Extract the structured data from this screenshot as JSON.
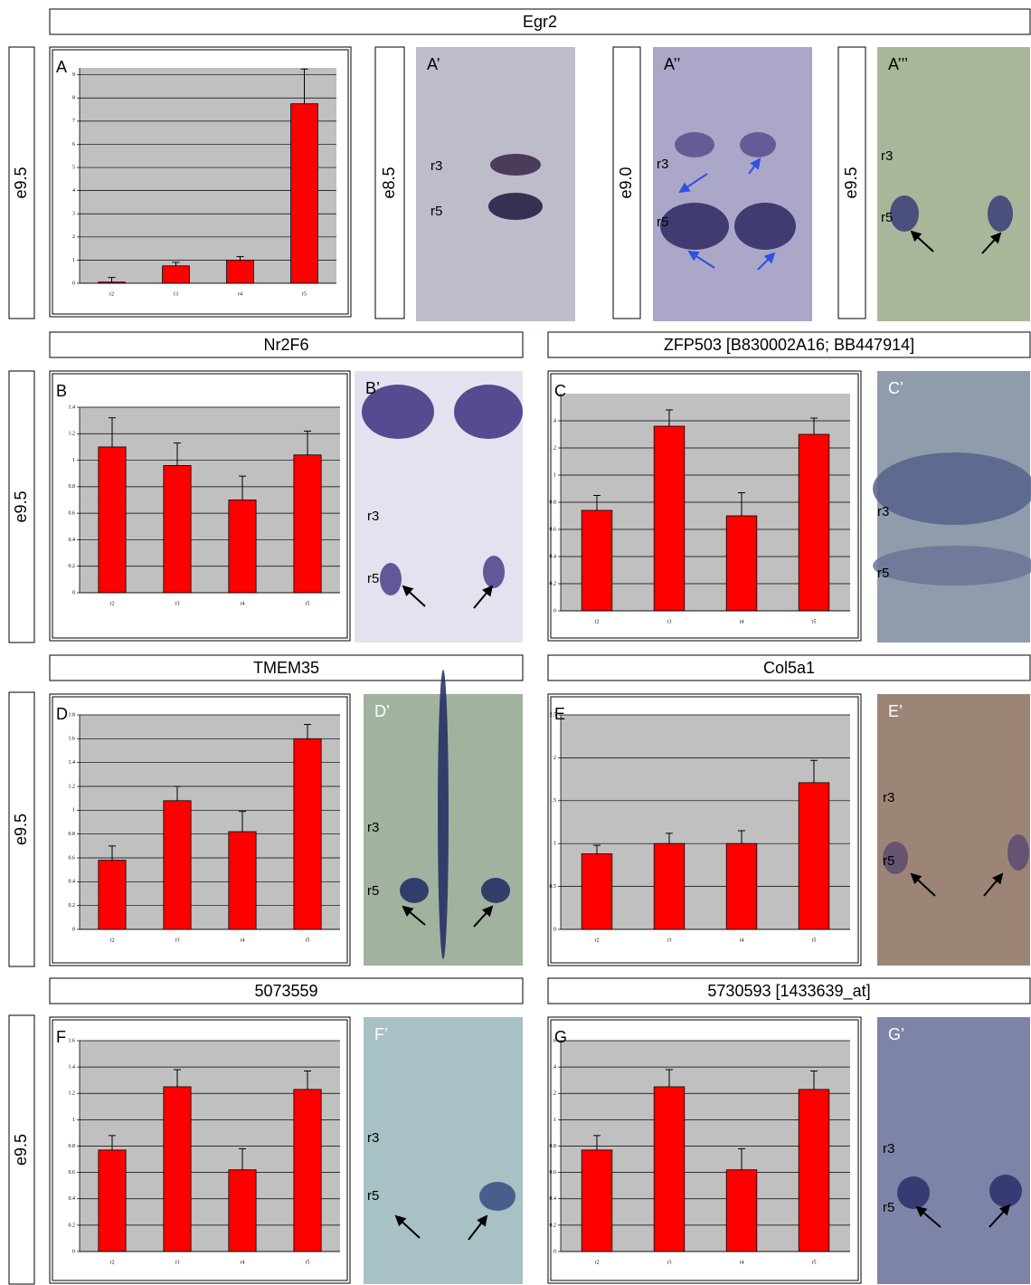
{
  "headers": [
    "Egr2",
    "Nr2F6",
    "ZFP503 [B830002A16; BB447914]",
    "TMEM35",
    "Col5a1",
    "5073559",
    "5730593 [1433639_at]"
  ],
  "stages": [
    "e9.5",
    "e8.5",
    "e9.0",
    "e9.5",
    "e9.5",
    "e9.5",
    "e9.5"
  ],
  "images": [
    {
      "label": "A’",
      "markers": [
        "r3",
        "r5"
      ]
    },
    {
      "label": "A’’",
      "markers": [
        "r3",
        "r5"
      ]
    },
    {
      "label": "A’’’",
      "markers": [
        "r3",
        "r5"
      ]
    },
    {
      "label": "B’",
      "markers": [
        "r3",
        "r5"
      ]
    },
    {
      "label": "C’",
      "markers": [
        "r3",
        "r5"
      ]
    },
    {
      "label": "D’",
      "markers": [
        "r3",
        "r5"
      ]
    },
    {
      "label": "E’",
      "markers": [
        "r3",
        "r5"
      ]
    },
    {
      "label": "F’",
      "markers": [
        "r3",
        "r5"
      ]
    },
    {
      "label": "G’",
      "markers": [
        "r3",
        "r5"
      ]
    }
  ],
  "chart_data": [
    {
      "type": "bar",
      "panel": "A",
      "categories": [
        "r2",
        "r3",
        "r4",
        "r5"
      ],
      "values": [
        0.05,
        0.75,
        1.0,
        7.75
      ],
      "errors": [
        0.2,
        0.15,
        0.15,
        1.5
      ],
      "color": "#ff0000",
      "ylim": [
        0,
        9.3
      ],
      "yticks": [
        0,
        1,
        2,
        3,
        4,
        5,
        6,
        7,
        8,
        9
      ],
      "grid": true
    },
    {
      "type": "bar",
      "panel": "B",
      "categories": [
        "r2",
        "r3",
        "r4",
        "r5"
      ],
      "values": [
        1.1,
        0.96,
        0.7,
        1.04
      ],
      "errors": [
        0.22,
        0.17,
        0.18,
        0.18
      ],
      "color": "#ff0000",
      "ylim": [
        0,
        1.4
      ],
      "yticks": [
        0,
        0.2,
        0.4,
        0.6,
        0.8,
        1,
        1.2,
        1.4
      ],
      "grid": true
    },
    {
      "type": "bar",
      "panel": "C",
      "categories": [
        "r2",
        "r3",
        "r4",
        "r5"
      ],
      "values": [
        0.74,
        1.36,
        0.7,
        1.3
      ],
      "errors": [
        0.11,
        0.12,
        0.17,
        0.12
      ],
      "color": "#ff0000",
      "ylim": [
        0,
        1.6
      ],
      "yticks": [
        0,
        0.2,
        0.4,
        0.6,
        0.8,
        1,
        1.2,
        1.4
      ],
      "grid": true
    },
    {
      "type": "bar",
      "panel": "D",
      "categories": [
        "r2",
        "r3",
        "r4",
        "r5"
      ],
      "values": [
        0.58,
        1.08,
        0.82,
        1.6
      ],
      "errors": [
        0.12,
        0.12,
        0.17,
        0.12
      ],
      "color": "#ff0000",
      "ylim": [
        0,
        1.8
      ],
      "yticks": [
        0,
        0.2,
        0.4,
        0.6,
        0.8,
        1,
        1.2,
        1.4,
        1.6,
        1.8
      ],
      "grid": true
    },
    {
      "type": "bar",
      "panel": "E",
      "categories": [
        "r2",
        "r3",
        "r4",
        "r5"
      ],
      "values": [
        0.88,
        1.0,
        1.0,
        1.71
      ],
      "errors": [
        0.1,
        0.12,
        0.15,
        0.26
      ],
      "color": "#ff0000",
      "ylim": [
        0,
        2.5
      ],
      "yticks": [
        0,
        0.5,
        1,
        1.5,
        2,
        2.5
      ],
      "grid": true
    },
    {
      "type": "bar",
      "panel": "F",
      "categories": [
        "r2",
        "r3",
        "r4",
        "r5"
      ],
      "values": [
        0.77,
        1.25,
        0.62,
        1.23
      ],
      "errors": [
        0.11,
        0.13,
        0.16,
        0.14
      ],
      "color": "#ff0000",
      "ylim": [
        0,
        1.6
      ],
      "yticks": [
        0,
        0.2,
        0.4,
        0.6,
        0.8,
        1,
        1.2,
        1.4,
        1.6
      ],
      "grid": true
    },
    {
      "type": "bar",
      "panel": "G",
      "categories": [
        "r2",
        "r3",
        "r4",
        "r5"
      ],
      "values": [
        0.77,
        1.25,
        0.62,
        1.23
      ],
      "errors": [
        0.11,
        0.13,
        0.16,
        0.14
      ],
      "color": "#ff0000",
      "ylim": [
        0,
        1.6
      ],
      "yticks": [
        0,
        0.2,
        0.4,
        0.6,
        0.8,
        1,
        1.2,
        1.4,
        1.6
      ],
      "grid": true
    }
  ]
}
